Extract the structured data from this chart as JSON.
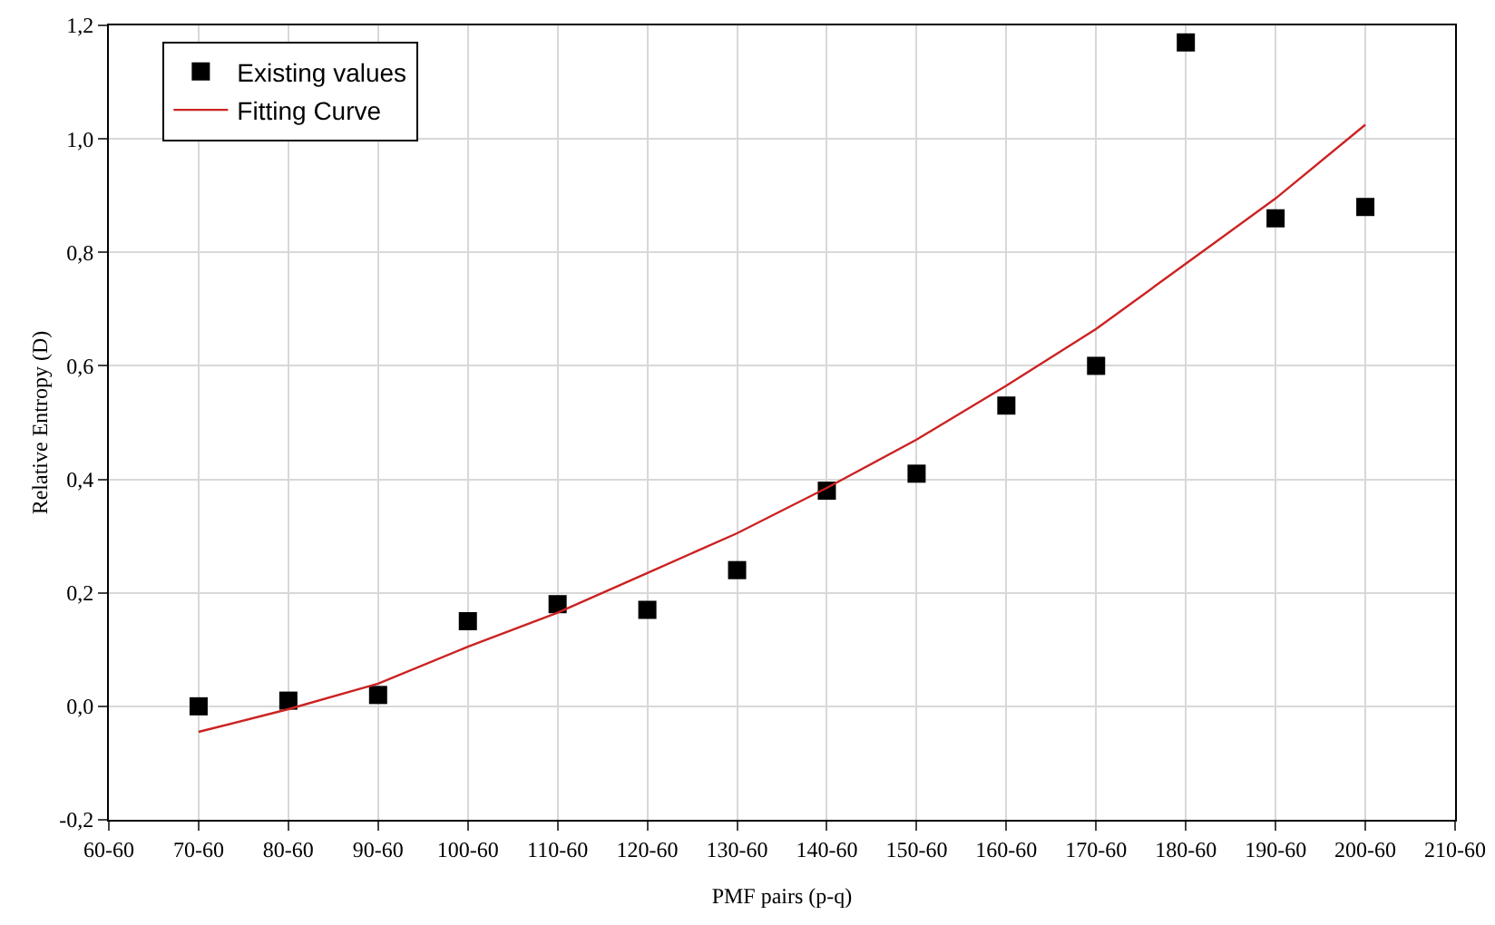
{
  "chart_data": {
    "type": "scatter",
    "xlabel": "PMF pairs (p-q)",
    "ylabel": "Relative Entropy (D)",
    "categories": [
      "60-60",
      "70-60",
      "80-60",
      "90-60",
      "100-60",
      "110-60",
      "120-60",
      "130-60",
      "140-60",
      "150-60",
      "160-60",
      "170-60",
      "180-60",
      "190-60",
      "200-60",
      "210-60"
    ],
    "ylim": [
      -0.2,
      1.2
    ],
    "yticks": [
      {
        "value": -0.2,
        "label": "-0,2"
      },
      {
        "value": 0,
        "label": "0,0"
      },
      {
        "value": 0.2,
        "label": "0,2"
      },
      {
        "value": 0.4,
        "label": "0,4"
      },
      {
        "value": 0.6,
        "label": "0,6"
      },
      {
        "value": 0.8,
        "label": "0,8"
      },
      {
        "value": 1,
        "label": "1,0"
      },
      {
        "value": 1.2,
        "label": "1,2"
      }
    ],
    "grid": true,
    "legend": "top left",
    "series": [
      {
        "name": "Existing values",
        "marker": "square",
        "color": "#000000",
        "values": [
          null,
          0.0,
          0.01,
          0.02,
          0.15,
          0.18,
          0.17,
          0.24,
          0.38,
          0.41,
          0.53,
          0.6,
          1.17,
          0.86,
          0.88,
          null
        ]
      },
      {
        "name": "Fitting Curve",
        "type": "line",
        "marker": "none",
        "line_style": "solid",
        "color": "#cc2222",
        "values": [
          null,
          -0.045,
          -0.005,
          0.04,
          0.105,
          0.165,
          0.235,
          0.305,
          0.385,
          0.47,
          0.565,
          0.665,
          0.78,
          0.895,
          1.025,
          null
        ]
      }
    ]
  }
}
